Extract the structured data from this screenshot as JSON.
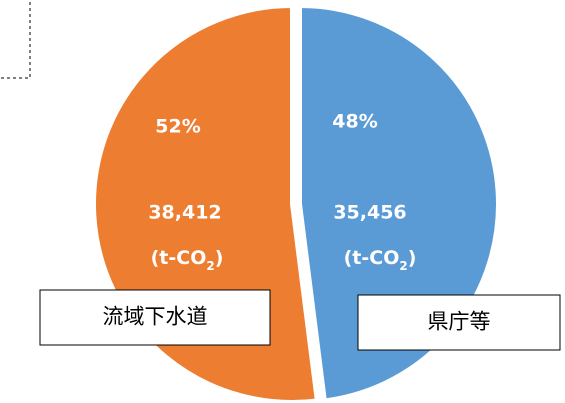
{
  "chart_data": {
    "type": "pie",
    "categories": [
      "県庁等",
      "流域下水道"
    ],
    "values": [
      35456,
      38412
    ],
    "value_labels": [
      "35,456",
      "38,412"
    ],
    "percent_labels": [
      "48%",
      "52%"
    ],
    "unit": [
      "(t-CO",
      "2",
      ")"
    ],
    "colors": [
      "#5b9bd5",
      "#ed7d31"
    ]
  }
}
